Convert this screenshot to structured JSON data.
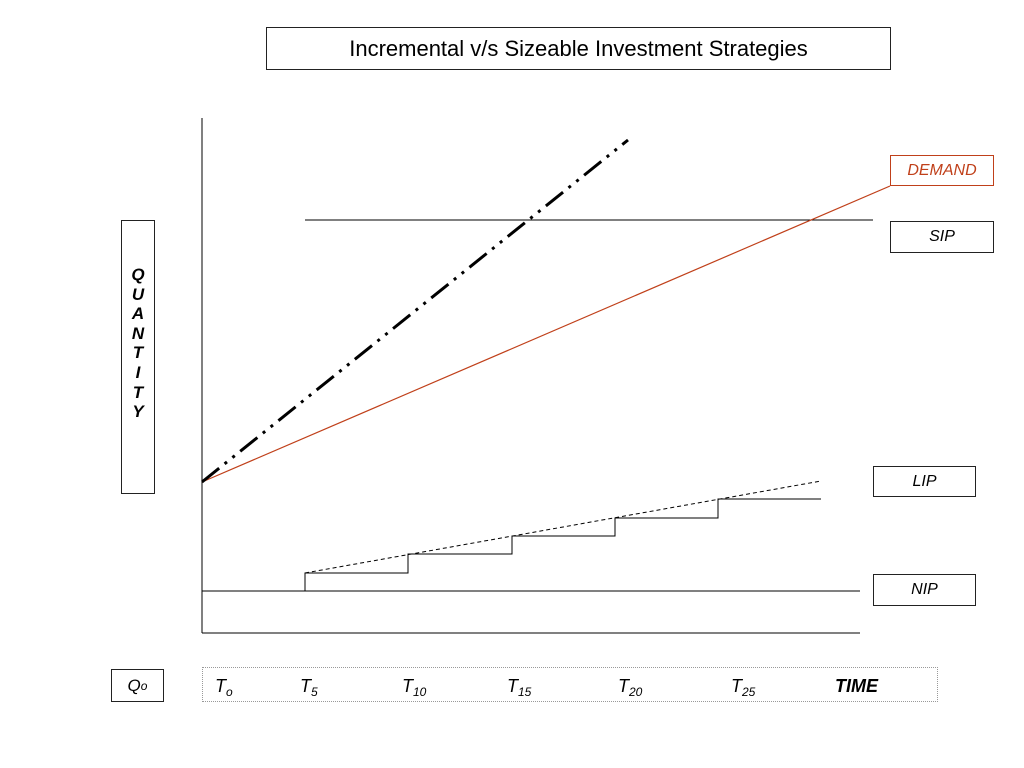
{
  "title": "Incremental v/s Sizeable Investment Strategies",
  "y_axis_label_letters": [
    "Q",
    "U",
    "A",
    "N",
    "T",
    "I",
    "T",
    "Y"
  ],
  "labels": {
    "demand": "DEMAND",
    "sip": "SIP",
    "lip": "LIP",
    "nip": "NIP"
  },
  "origin_quantity": {
    "base": "Q",
    "sub": "o"
  },
  "time_ticks": [
    {
      "base": "T",
      "sub": "o"
    },
    {
      "base": "T",
      "sub": "5"
    },
    {
      "base": "T",
      "sub": "10"
    },
    {
      "base": "T",
      "sub": "15"
    },
    {
      "base": "T",
      "sub": "20"
    },
    {
      "base": "T",
      "sub": "25"
    }
  ],
  "time_axis_label": "TIME",
  "colors": {
    "demand": "#c0401a",
    "lines": "#000000"
  }
}
